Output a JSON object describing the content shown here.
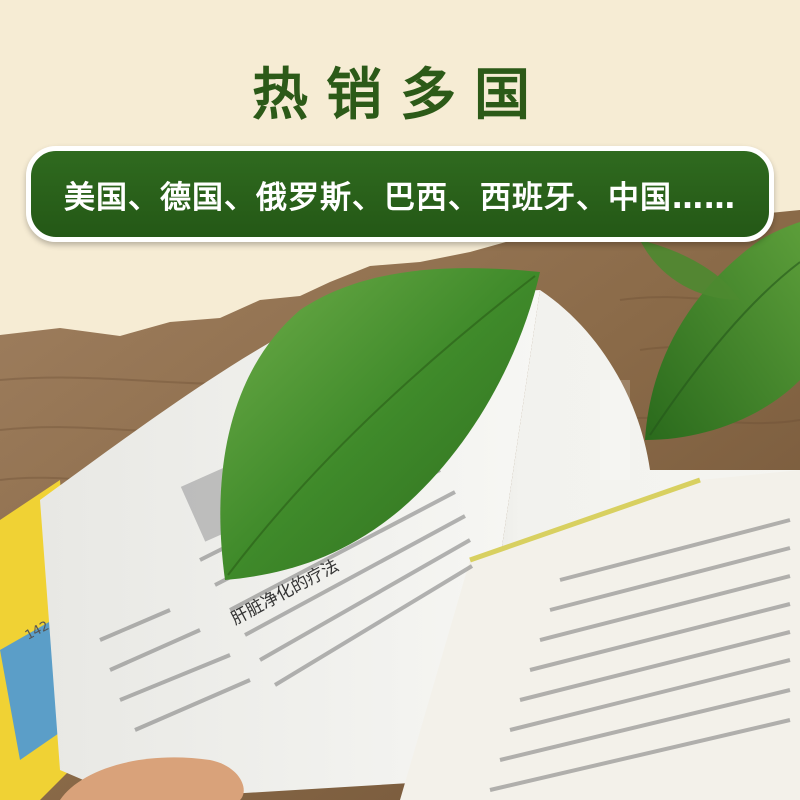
{
  "header": {
    "title": "热销多国"
  },
  "banner": {
    "text": "美国、德国、俄罗斯、巴西、西班牙、中国……"
  },
  "colors": {
    "background": "#f6ecd4",
    "title": "#2c5a18",
    "banner": "#2a6118",
    "banner_border": "#ffffff",
    "wood": "#8a6a48",
    "leaf": "#3f8a2a"
  },
  "photo": {
    "page_number": "142",
    "book_heading": "肝脏净化的疗法"
  }
}
